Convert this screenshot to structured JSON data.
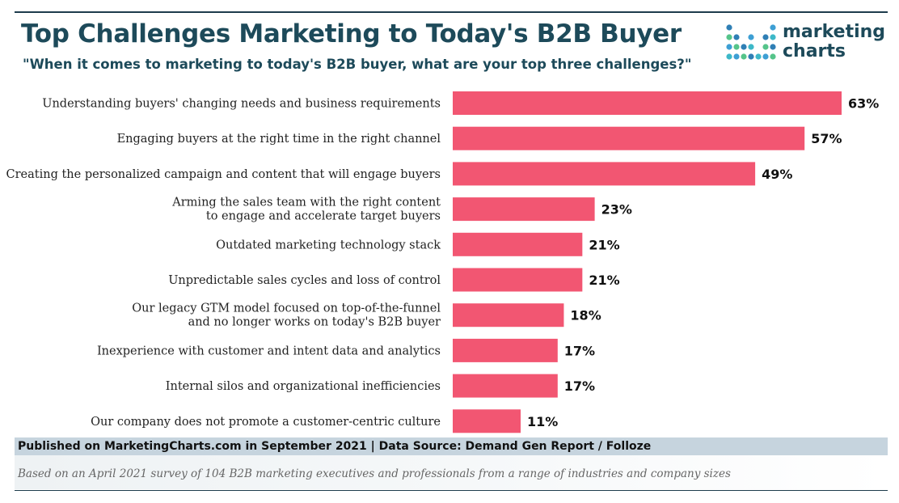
{
  "header": {
    "title": "Top Challenges Marketing to Today's B2B Buyer",
    "subtitle": "\"When it comes to marketing to today's B2B buyer, what are your top three challenges?\""
  },
  "logo": {
    "line1": "marketing",
    "line2": "charts",
    "colors": [
      "#3db8c8",
      "#3d9fd4",
      "#55c48a",
      "#2f7fb5"
    ]
  },
  "chart_data": {
    "type": "bar",
    "orientation": "horizontal",
    "title": "Top Challenges Marketing to Today's B2B Buyer",
    "bar_color": "#f25672",
    "categories": [
      [
        "Understanding buyers' changing needs and business requirements"
      ],
      [
        "Engaging buyers at the right time in the right channel"
      ],
      [
        "Creating the personalized campaign and content that will engage buyers"
      ],
      [
        "Arming the sales team with the right content",
        "to engage and accelerate target buyers"
      ],
      [
        "Outdated marketing technology stack"
      ],
      [
        "Unpredictable sales cycles and loss of control"
      ],
      [
        "Our legacy GTM model focused on top-of-the-funnel",
        "and no longer works on today's B2B buyer"
      ],
      [
        "Inexperience with customer and intent data and analytics"
      ],
      [
        "Internal silos and organizational inefficiencies"
      ],
      [
        "Our company does not promote a customer-centric culture"
      ]
    ],
    "values": [
      63,
      57,
      49,
      23,
      21,
      21,
      18,
      17,
      17,
      11
    ],
    "value_labels": [
      "63%",
      "57%",
      "49%",
      "23%",
      "21%",
      "21%",
      "18%",
      "17%",
      "17%",
      "11%"
    ],
    "xlim": [
      0,
      63
    ],
    "grid": false,
    "legend": "none"
  },
  "footer": {
    "published": "Published on MarketingCharts.com in September 2021 | Data Source: Demand Gen Report / Folloze",
    "note": "Based on an April 2021 survey of 104 B2B marketing executives and professionals from a range of industries and company sizes"
  }
}
